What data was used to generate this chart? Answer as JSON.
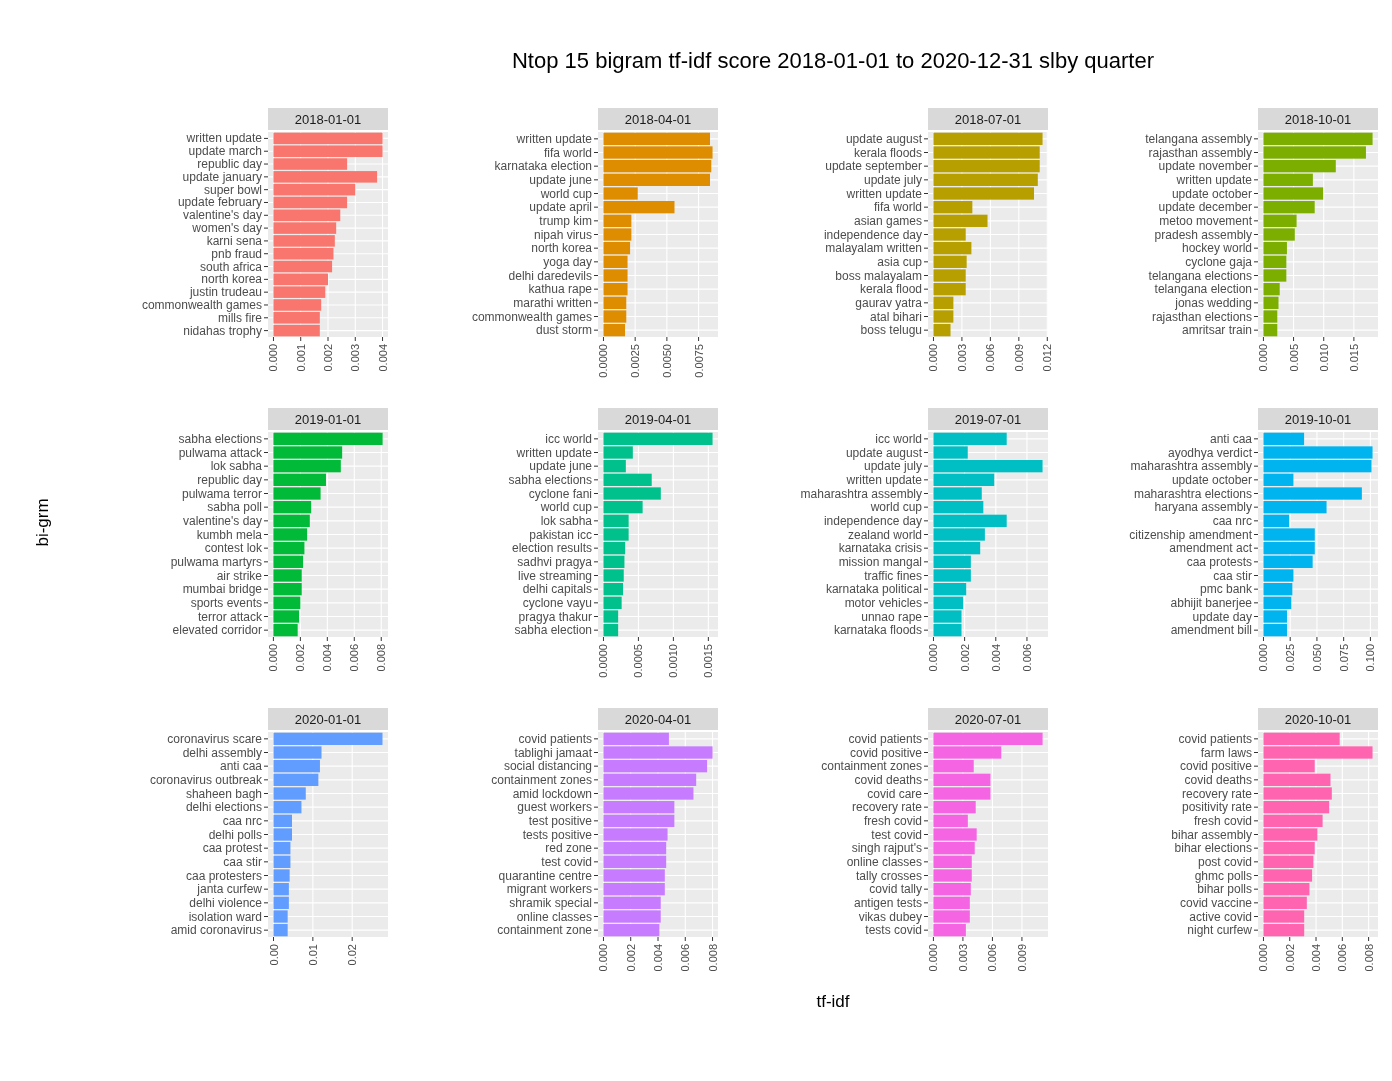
{
  "chart_data": [
    {
      "type": "bar",
      "orientation": "horizontal",
      "title": "2018-01-01",
      "annotations": [
        "Ntop 15 bigram tf-idf score 2018-01-01 to 2020-12-31 slby quarter"
      ],
      "grid": true,
      "color": "#f8766d",
      "categories": [
        "written update",
        "update march",
        "republic day",
        "update january",
        "super bowl",
        "update february",
        "valentine's day",
        "women's day",
        "karni sena",
        "pnb fraud",
        "south africa",
        "north korea",
        "justin trudeau",
        "commonwealth games",
        "mills fire",
        "nidahas trophy"
      ],
      "values": [
        0.004,
        0.004,
        0.0027,
        0.0038,
        0.003,
        0.0027,
        0.00245,
        0.0023,
        0.00225,
        0.0022,
        0.00215,
        0.002,
        0.0019,
        0.00175,
        0.0017,
        0.0017
      ],
      "xlim": [
        -0.0002,
        0.0042
      ],
      "xticks": [
        {
          "value": 0,
          "label": "0.000"
        },
        {
          "value": 0.001,
          "label": "0.001"
        },
        {
          "value": 0.002,
          "label": "0.002"
        },
        {
          "value": 0.003,
          "label": "0.003"
        },
        {
          "value": 0.004,
          "label": "0.004"
        }
      ]
    },
    {
      "type": "bar",
      "orientation": "horizontal",
      "title": "2018-04-01",
      "grid": true,
      "color": "#de8c00",
      "categories": [
        "written update",
        "fifa world",
        "karnataka election",
        "update june",
        "world cup",
        "update april",
        "trump kim",
        "nipah virus",
        "north korea",
        "yoga day",
        "delhi daredevils",
        "kathua rape",
        "marathi written",
        "commonwealth games",
        "dust storm"
      ],
      "values": [
        0.0084,
        0.0086,
        0.0085,
        0.0084,
        0.0027,
        0.0056,
        0.0022,
        0.0022,
        0.0021,
        0.0019,
        0.0019,
        0.0019,
        0.0018,
        0.0018,
        0.0017
      ],
      "xlim": [
        -0.00043,
        0.00903
      ],
      "xticks": [
        {
          "value": 0,
          "label": "0.0000"
        },
        {
          "value": 0.0025,
          "label": "0.0025"
        },
        {
          "value": 0.005,
          "label": "0.0050"
        },
        {
          "value": 0.0075,
          "label": "0.0075"
        }
      ]
    },
    {
      "type": "bar",
      "orientation": "horizontal",
      "title": "2018-07-01",
      "grid": true,
      "color": "#b79f00",
      "categories": [
        "update august",
        "kerala floods",
        "update september",
        "update july",
        "written update",
        "fifa world",
        "asian games",
        "independence day",
        "malayalam written",
        "asia cup",
        "boss malayalam",
        "kerala flood",
        "gaurav yatra",
        "atal bihari",
        "boss telugu"
      ],
      "values": [
        0.0115,
        0.0112,
        0.0112,
        0.011,
        0.0106,
        0.0041,
        0.0057,
        0.0034,
        0.004,
        0.0035,
        0.0034,
        0.0034,
        0.0021,
        0.0021,
        0.0018
      ],
      "xlim": [
        -0.000575,
        0.012075
      ],
      "xticks": [
        {
          "value": 0,
          "label": "0.000"
        },
        {
          "value": 0.003,
          "label": "0.003"
        },
        {
          "value": 0.006,
          "label": "0.006"
        },
        {
          "value": 0.009,
          "label": "0.009"
        },
        {
          "value": 0.012,
          "label": "0.012"
        }
      ]
    },
    {
      "type": "bar",
      "orientation": "horizontal",
      "title": "2018-10-01",
      "grid": true,
      "color": "#7cae00",
      "categories": [
        "telangana assembly",
        "rajasthan assembly",
        "update november",
        "written update",
        "update october",
        "update december",
        "metoo movement",
        "pradesh assembly",
        "hockey world",
        "cyclone gaja",
        "telangana elections",
        "telangana election",
        "jonas wedding",
        "rajasthan elections",
        "amritsar train"
      ],
      "values": [
        0.0181,
        0.017,
        0.012,
        0.0082,
        0.0099,
        0.0085,
        0.0055,
        0.0052,
        0.0039,
        0.0038,
        0.0038,
        0.0027,
        0.0025,
        0.0023,
        0.0023
      ],
      "xlim": [
        -0.0009,
        0.019
      ],
      "xticks": [
        {
          "value": 0,
          "label": "0.000"
        },
        {
          "value": 0.005,
          "label": "0.005"
        },
        {
          "value": 0.01,
          "label": "0.010"
        },
        {
          "value": 0.015,
          "label": "0.015"
        }
      ]
    },
    {
      "type": "bar",
      "orientation": "horizontal",
      "title": "2019-01-01",
      "ylabel": "bi-grm",
      "grid": true,
      "color": "#00ba38",
      "categories": [
        "sabha elections",
        "pulwama attack",
        "lok sabha",
        "republic day",
        "pulwama terror",
        "sabha poll",
        "valentine's day",
        "kumbh mela",
        "contest lok",
        "pulwama martyrs",
        "air strike",
        "mumbai bridge",
        "sports events",
        "terror attack",
        "elevated corridor"
      ],
      "values": [
        0.0081,
        0.0051,
        0.005,
        0.0039,
        0.0035,
        0.0028,
        0.0027,
        0.0025,
        0.0023,
        0.0022,
        0.0021,
        0.0021,
        0.002,
        0.0019,
        0.0018
      ],
      "xlim": [
        -0.0004,
        0.0085
      ],
      "xticks": [
        {
          "value": 0,
          "label": "0.000"
        },
        {
          "value": 0.002,
          "label": "0.002"
        },
        {
          "value": 0.004,
          "label": "0.004"
        },
        {
          "value": 0.006,
          "label": "0.006"
        },
        {
          "value": 0.008,
          "label": "0.008"
        }
      ]
    },
    {
      "type": "bar",
      "orientation": "horizontal",
      "title": "2019-04-01",
      "grid": true,
      "color": "#00c08b",
      "categories": [
        "icc world",
        "written update",
        "update june",
        "sabha elections",
        "cyclone fani",
        "world cup",
        "lok sabha",
        "pakistan icc",
        "election results",
        "sadhvi pragya",
        "live streaming",
        "delhi capitals",
        "cyclone vayu",
        "pragya thakur",
        "sabha election"
      ],
      "values": [
        0.00156,
        0.00042,
        0.00032,
        0.00069,
        0.00082,
        0.00056,
        0.00036,
        0.00036,
        0.00031,
        0.0003,
        0.00029,
        0.00028,
        0.00026,
        0.00021,
        0.00021
      ],
      "xlim": [
        -7.8e-05,
        0.001638
      ],
      "xticks": [
        {
          "value": 0,
          "label": "0.0000"
        },
        {
          "value": 0.0005,
          "label": "0.0005"
        },
        {
          "value": 0.001,
          "label": "0.0010"
        },
        {
          "value": 0.0015,
          "label": "0.0015"
        }
      ]
    },
    {
      "type": "bar",
      "orientation": "horizontal",
      "title": "2019-07-01",
      "grid": true,
      "color": "#00bfc4",
      "categories": [
        "icc world",
        "update august",
        "update july",
        "written update",
        "maharashtra assembly",
        "world cup",
        "independence day",
        "zealand world",
        "karnataka crisis",
        "mission mangal",
        "traffic fines",
        "karnataka political",
        "motor vehicles",
        "unnao rape",
        "karnataka floods"
      ],
      "values": [
        0.0047,
        0.0022,
        0.007,
        0.0039,
        0.0031,
        0.0032,
        0.0047,
        0.0033,
        0.003,
        0.0024,
        0.0024,
        0.0021,
        0.0019,
        0.0018,
        0.0018
      ],
      "xlim": [
        -0.00035,
        0.00735
      ],
      "xticks": [
        {
          "value": 0,
          "label": "0.000"
        },
        {
          "value": 0.002,
          "label": "0.002"
        },
        {
          "value": 0.004,
          "label": "0.004"
        },
        {
          "value": 0.006,
          "label": "0.006"
        }
      ]
    },
    {
      "type": "bar",
      "orientation": "horizontal",
      "title": "2019-10-01",
      "grid": true,
      "color": "#00b4f0",
      "categories": [
        "anti caa",
        "ayodhya verdict",
        "maharashtra assembly",
        "update october",
        "maharashtra elections",
        "haryana assembly",
        "caa nrc",
        "citizenship amendment",
        "amendment act",
        "caa protests",
        "caa stir",
        "pmc bank",
        "abhijit banerjee",
        "update day",
        "amendment bill"
      ],
      "values": [
        0.038,
        0.102,
        0.101,
        0.028,
        0.092,
        0.059,
        0.024,
        0.048,
        0.048,
        0.046,
        0.028,
        0.027,
        0.026,
        0.022,
        0.022
      ],
      "xlim": [
        -0.0051,
        0.1071
      ],
      "xticks": [
        {
          "value": 0,
          "label": "0.000"
        },
        {
          "value": 0.025,
          "label": "0.025"
        },
        {
          "value": 0.05,
          "label": "0.050"
        },
        {
          "value": 0.075,
          "label": "0.075"
        },
        {
          "value": 0.1,
          "label": "0.100"
        }
      ]
    },
    {
      "type": "bar",
      "orientation": "horizontal",
      "title": "2020-01-01",
      "grid": true,
      "color": "#619cff",
      "categories": [
        "coronavirus scare",
        "delhi assembly",
        "anti caa",
        "coronavirus outbreak",
        "shaheen bagh",
        "delhi elections",
        "caa nrc",
        "delhi polls",
        "caa protest",
        "caa stir",
        "caa protesters",
        "janta curfew",
        "delhi violence",
        "isolation ward",
        "amid coronavirus"
      ],
      "values": [
        0.0277,
        0.0122,
        0.0118,
        0.0114,
        0.0082,
        0.0071,
        0.0047,
        0.0047,
        0.0043,
        0.0043,
        0.0041,
        0.0039,
        0.0039,
        0.0036,
        0.0036
      ],
      "xlim": [
        -0.0014,
        0.0291
      ],
      "xticks": [
        {
          "value": 0,
          "label": "0.00"
        },
        {
          "value": 0.01,
          "label": "0.01"
        },
        {
          "value": 0.02,
          "label": "0.02"
        }
      ]
    },
    {
      "type": "bar",
      "orientation": "horizontal",
      "title": "2020-04-01",
      "xlabel": "tf-idf",
      "grid": true,
      "color": "#c77cff",
      "categories": [
        "covid patients",
        "tablighi jamaat",
        "social distancing",
        "containment zones",
        "amid lockdown",
        "guest workers",
        "test positive",
        "tests positive",
        "red zone",
        "test covid",
        "quarantine centre",
        "migrant workers",
        "shramik special",
        "online classes",
        "containment zone"
      ],
      "values": [
        0.0048,
        0.008,
        0.0076,
        0.0068,
        0.0066,
        0.0052,
        0.0052,
        0.0047,
        0.0046,
        0.0046,
        0.0045,
        0.0045,
        0.0042,
        0.0042,
        0.0041
      ],
      "xlim": [
        -0.0004,
        0.0084
      ],
      "xticks": [
        {
          "value": 0,
          "label": "0.000"
        },
        {
          "value": 0.002,
          "label": "0.002"
        },
        {
          "value": 0.004,
          "label": "0.004"
        },
        {
          "value": 0.006,
          "label": "0.006"
        },
        {
          "value": 0.008,
          "label": "0.008"
        }
      ]
    },
    {
      "type": "bar",
      "orientation": "horizontal",
      "title": "2020-07-01",
      "grid": true,
      "color": "#f564e3",
      "categories": [
        "covid patients",
        "covid positive",
        "containment zones",
        "covid deaths",
        "covid care",
        "recovery rate",
        "fresh covid",
        "test covid",
        "singh rajput's",
        "online classes",
        "tally crosses",
        "covid tally",
        "antigen tests",
        "vikas dubey",
        "tests covid"
      ],
      "values": [
        0.0111,
        0.0069,
        0.0041,
        0.0058,
        0.0058,
        0.0043,
        0.0035,
        0.0044,
        0.0042,
        0.0039,
        0.0039,
        0.0038,
        0.0037,
        0.0037,
        0.0033
      ],
      "xlim": [
        -0.00055,
        0.01165
      ],
      "xticks": [
        {
          "value": 0,
          "label": "0.000"
        },
        {
          "value": 0.003,
          "label": "0.003"
        },
        {
          "value": 0.006,
          "label": "0.006"
        },
        {
          "value": 0.009,
          "label": "0.009"
        }
      ]
    },
    {
      "type": "bar",
      "orientation": "horizontal",
      "title": "2020-10-01",
      "grid": true,
      "color": "#ff64b0",
      "categories": [
        "covid patients",
        "farm laws",
        "covid positive",
        "covid deaths",
        "recovery rate",
        "positivity rate",
        "fresh covid",
        "bihar assembly",
        "bihar elections",
        "post covid",
        "ghmc polls",
        "bihar polls",
        "covid vaccine",
        "active covid",
        "night curfew"
      ],
      "values": [
        0.0058,
        0.0083,
        0.0039,
        0.0051,
        0.0052,
        0.005,
        0.0045,
        0.0041,
        0.0039,
        0.0038,
        0.0037,
        0.0035,
        0.0033,
        0.0031,
        0.0031
      ],
      "xlim": [
        -0.000415,
        0.008715
      ],
      "xticks": [
        {
          "value": 0,
          "label": "0.000"
        },
        {
          "value": 0.002,
          "label": "0.002"
        },
        {
          "value": 0.004,
          "label": "0.004"
        },
        {
          "value": 0.006,
          "label": "0.006"
        },
        {
          "value": 0.008,
          "label": "0.008"
        }
      ]
    }
  ]
}
